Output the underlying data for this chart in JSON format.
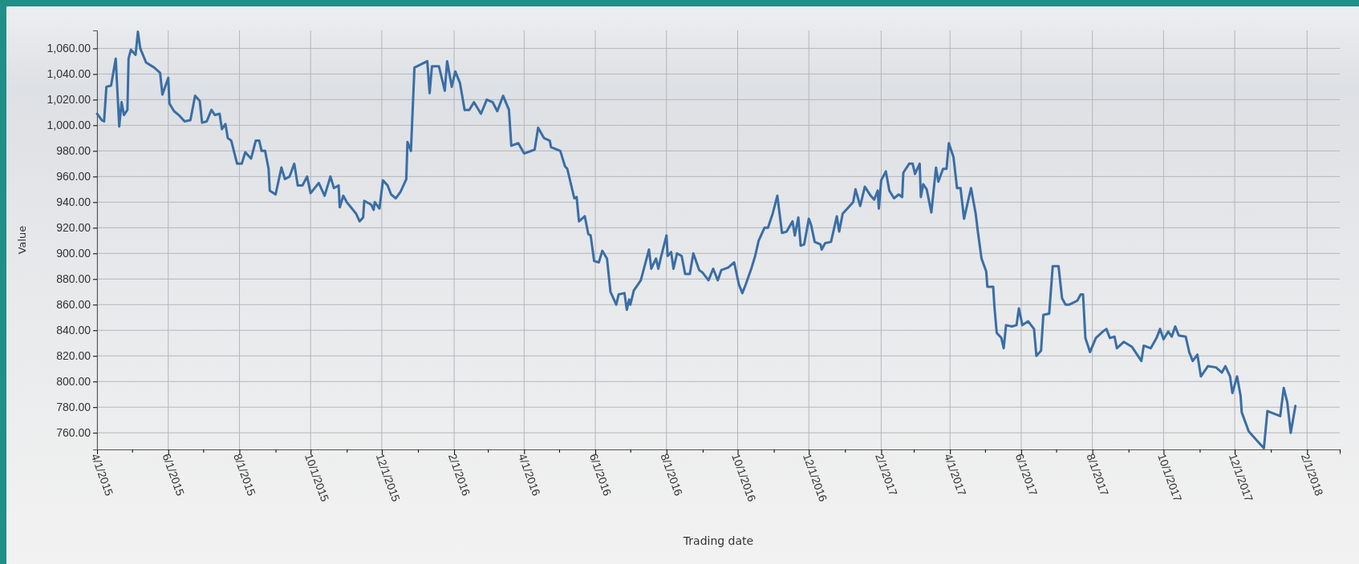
{
  "chart_data": {
    "type": "line",
    "xlabel": "Trading date",
    "ylabel": "Value",
    "grid": true,
    "line_style": "solid",
    "marker": "none",
    "xlim": [
      "2015-04-01",
      "2018-03-01"
    ],
    "xticks": [
      {
        "value": "2015-04-01",
        "label": "4/1/2015"
      },
      {
        "value": "2015-05-01",
        "label": null
      },
      {
        "value": "2015-06-01",
        "label": "6/1/2015"
      },
      {
        "value": "2015-07-01",
        "label": null
      },
      {
        "value": "2015-08-01",
        "label": "8/1/2015"
      },
      {
        "value": "2015-09-01",
        "label": null
      },
      {
        "value": "2015-10-01",
        "label": "10/1/2015"
      },
      {
        "value": "2015-11-01",
        "label": null
      },
      {
        "value": "2015-12-01",
        "label": "12/1/2015"
      },
      {
        "value": "2016-01-01",
        "label": null
      },
      {
        "value": "2016-02-01",
        "label": "2/1/2016"
      },
      {
        "value": "2016-03-01",
        "label": null
      },
      {
        "value": "2016-04-01",
        "label": "4/1/2016"
      },
      {
        "value": "2016-05-01",
        "label": null
      },
      {
        "value": "2016-06-01",
        "label": "6/1/2016"
      },
      {
        "value": "2016-07-01",
        "label": null
      },
      {
        "value": "2016-08-01",
        "label": "8/1/2016"
      },
      {
        "value": "2016-09-01",
        "label": null
      },
      {
        "value": "2016-10-01",
        "label": "10/1/2016"
      },
      {
        "value": "2016-11-01",
        "label": null
      },
      {
        "value": "2016-12-01",
        "label": "12/1/2016"
      },
      {
        "value": "2017-01-01",
        "label": null
      },
      {
        "value": "2017-02-01",
        "label": "2/1/2017"
      },
      {
        "value": "2017-03-01",
        "label": null
      },
      {
        "value": "2017-04-01",
        "label": "4/1/2017"
      },
      {
        "value": "2017-05-01",
        "label": null
      },
      {
        "value": "2017-06-01",
        "label": "6/1/2017"
      },
      {
        "value": "2017-07-01",
        "label": null
      },
      {
        "value": "2017-08-01",
        "label": "8/1/2017"
      },
      {
        "value": "2017-09-01",
        "label": null
      },
      {
        "value": "2017-10-01",
        "label": "10/1/2017"
      },
      {
        "value": "2017-11-01",
        "label": null
      },
      {
        "value": "2017-12-01",
        "label": "12/1/2017"
      },
      {
        "value": "2018-01-01",
        "label": null
      },
      {
        "value": "2018-02-01",
        "label": "2/1/2018"
      },
      {
        "value": "2018-03-01",
        "label": null
      }
    ],
    "ylim": [
      747,
      1074
    ],
    "yticks": [
      {
        "value": 760,
        "label": "760.00"
      },
      {
        "value": 780,
        "label": "780.00"
      },
      {
        "value": 800,
        "label": "800.00"
      },
      {
        "value": 820,
        "label": "820.00"
      },
      {
        "value": 840,
        "label": "840.00"
      },
      {
        "value": 860,
        "label": "860.00"
      },
      {
        "value": 880,
        "label": "880.00"
      },
      {
        "value": 900,
        "label": "900.00"
      },
      {
        "value": 920,
        "label": "920.00"
      },
      {
        "value": 940,
        "label": "940.00"
      },
      {
        "value": 960,
        "label": "960.00"
      },
      {
        "value": 980,
        "label": "980.00"
      },
      {
        "value": 1000,
        "label": "1,000.00"
      },
      {
        "value": 1020,
        "label": "1,020.00"
      },
      {
        "value": 1040,
        "label": "1,040.00"
      },
      {
        "value": 1060,
        "label": "1,060.00"
      }
    ],
    "series": [
      {
        "color": "#3a6ea5",
        "x": [
          "2015-04-01",
          "2015-04-05",
          "2015-04-07",
          "2015-04-09",
          "2015-04-13",
          "2015-04-17",
          "2015-04-20",
          "2015-04-22",
          "2015-04-24",
          "2015-04-27",
          "2015-04-28",
          "2015-04-30",
          "2015-05-04",
          "2015-05-06",
          "2015-05-08",
          "2015-05-13",
          "2015-05-20",
          "2015-05-25",
          "2015-05-27",
          "2015-06-01",
          "2015-06-02",
          "2015-06-06",
          "2015-06-10",
          "2015-06-15",
          "2015-06-20",
          "2015-06-24",
          "2015-06-28",
          "2015-06-30",
          "2015-07-04",
          "2015-07-08",
          "2015-07-11",
          "2015-07-15",
          "2015-07-17",
          "2015-07-20",
          "2015-07-22",
          "2015-07-25",
          "2015-07-30",
          "2015-08-03",
          "2015-08-06",
          "2015-08-11",
          "2015-08-15",
          "2015-08-18",
          "2015-08-20",
          "2015-08-23",
          "2015-08-26",
          "2015-08-27",
          "2015-09-01",
          "2015-09-06",
          "2015-09-09",
          "2015-09-13",
          "2015-09-17",
          "2015-09-20",
          "2015-09-24",
          "2015-09-28",
          "2015-10-01",
          "2015-10-08",
          "2015-10-13",
          "2015-10-18",
          "2015-10-21",
          "2015-10-25",
          "2015-10-26",
          "2015-10-29",
          "2015-11-01",
          "2015-11-09",
          "2015-11-12",
          "2015-11-15",
          "2015-11-16",
          "2015-11-22",
          "2015-11-24",
          "2015-11-25",
          "2015-11-29",
          "2015-12-02",
          "2015-12-06",
          "2015-12-09",
          "2015-12-13",
          "2015-12-17",
          "2015-12-22",
          "2015-12-23",
          "2015-12-26",
          "2015-12-29",
          "2016-01-09",
          "2016-01-11",
          "2016-01-13",
          "2016-01-19",
          "2016-01-24",
          "2016-01-26",
          "2016-01-30",
          "2016-02-02",
          "2016-02-06",
          "2016-02-10",
          "2016-02-14",
          "2016-02-18",
          "2016-02-24",
          "2016-02-29",
          "2016-03-05",
          "2016-03-09",
          "2016-03-14",
          "2016-03-19",
          "2016-03-21",
          "2016-03-27",
          "2016-04-01",
          "2016-04-10",
          "2016-04-13",
          "2016-04-18",
          "2016-04-23",
          "2016-04-24",
          "2016-05-02",
          "2016-05-06",
          "2016-05-08",
          "2016-05-14",
          "2016-05-16",
          "2016-05-18",
          "2016-05-23",
          "2016-05-26",
          "2016-05-28",
          "2016-05-31",
          "2016-06-04",
          "2016-06-07",
          "2016-06-11",
          "2016-06-14",
          "2016-06-19",
          "2016-06-21",
          "2016-06-26",
          "2016-06-28",
          "2016-06-30",
          "2016-07-01",
          "2016-07-04",
          "2016-07-10",
          "2016-07-17",
          "2016-07-19",
          "2016-07-23",
          "2016-07-25",
          "2016-07-27",
          "2016-08-01",
          "2016-08-02",
          "2016-08-05",
          "2016-08-07",
          "2016-08-10",
          "2016-08-14",
          "2016-08-17",
          "2016-08-21",
          "2016-08-24",
          "2016-08-29",
          "2016-09-01",
          "2016-09-06",
          "2016-09-10",
          "2016-09-14",
          "2016-09-17",
          "2016-09-23",
          "2016-09-28",
          "2016-10-02",
          "2016-10-05",
          "2016-10-08",
          "2016-10-13",
          "2016-10-16",
          "2016-10-19",
          "2016-10-24",
          "2016-10-27",
          "2016-10-31",
          "2016-11-04",
          "2016-11-08",
          "2016-11-12",
          "2016-11-17",
          "2016-11-19",
          "2016-11-22",
          "2016-11-24",
          "2016-11-27",
          "2016-12-01",
          "2016-12-03",
          "2016-12-06",
          "2016-12-11",
          "2016-12-12",
          "2016-12-15",
          "2016-12-20",
          "2016-12-25",
          "2016-12-27",
          "2016-12-30",
          "2017-01-08",
          "2017-01-10",
          "2017-01-14",
          "2017-01-18",
          "2017-01-23",
          "2017-01-26",
          "2017-01-29",
          "2017-01-30",
          "2017-02-01",
          "2017-02-05",
          "2017-02-08",
          "2017-02-12",
          "2017-02-16",
          "2017-02-19",
          "2017-02-20",
          "2017-02-25",
          "2017-02-28",
          "2017-03-02",
          "2017-03-06",
          "2017-03-07",
          "2017-03-09",
          "2017-03-12",
          "2017-03-16",
          "2017-03-20",
          "2017-03-22",
          "2017-03-26",
          "2017-03-29",
          "2017-03-31",
          "2017-04-04",
          "2017-04-07",
          "2017-04-10",
          "2017-04-13",
          "2017-04-19",
          "2017-04-23",
          "2017-04-25",
          "2017-04-28",
          "2017-05-02",
          "2017-05-03",
          "2017-05-08",
          "2017-05-09",
          "2017-05-11",
          "2017-05-15",
          "2017-05-17",
          "2017-05-19",
          "2017-05-24",
          "2017-05-28",
          "2017-05-30",
          "2017-06-02",
          "2017-06-07",
          "2017-06-12",
          "2017-06-14",
          "2017-06-18",
          "2017-06-20",
          "2017-06-25",
          "2017-06-28",
          "2017-07-03",
          "2017-07-06",
          "2017-07-09",
          "2017-07-12",
          "2017-07-19",
          "2017-07-22",
          "2017-07-24",
          "2017-07-26",
          "2017-07-30",
          "2017-08-04",
          "2017-08-10",
          "2017-08-13",
          "2017-08-16",
          "2017-08-20",
          "2017-08-22",
          "2017-08-28",
          "2017-09-04",
          "2017-09-12",
          "2017-09-14",
          "2017-09-20",
          "2017-09-25",
          "2017-09-28",
          "2017-10-01",
          "2017-10-05",
          "2017-10-08",
          "2017-10-11",
          "2017-10-14",
          "2017-10-20",
          "2017-10-23",
          "2017-10-26",
          "2017-10-30",
          "2017-11-02",
          "2017-11-08",
          "2017-11-15",
          "2017-11-20",
          "2017-11-23",
          "2017-11-27",
          "2017-11-29",
          "2017-12-03",
          "2017-12-06",
          "2017-12-07",
          "2017-12-13",
          "2017-12-19",
          "2017-12-26",
          "2017-12-29",
          "2018-01-09",
          "2018-01-12",
          "2018-01-15",
          "2018-01-18",
          "2018-01-22"
        ],
        "values": [
          1009,
          1004,
          1003,
          1030,
          1031,
          1052,
          999,
          1018,
          1008,
          1012,
          1052,
          1059,
          1055,
          1073,
          1060,
          1049,
          1045,
          1041,
          1024,
          1037,
          1017,
          1011,
          1008,
          1003,
          1004,
          1023,
          1019,
          1002,
          1003,
          1012,
          1008,
          1009,
          997,
          1001,
          990,
          988,
          970,
          970,
          979,
          974,
          988,
          988,
          980,
          980,
          966,
          949,
          946,
          967,
          958,
          960,
          970,
          953,
          953,
          960,
          947,
          955,
          945,
          960,
          951,
          953,
          936,
          945,
          940,
          931,
          925,
          928,
          941,
          938,
          934,
          940,
          935,
          957,
          953,
          946,
          943,
          948,
          958,
          987,
          980,
          1045,
          1050,
          1025,
          1046,
          1046,
          1027,
          1050,
          1030,
          1042,
          1033,
          1012,
          1012,
          1018,
          1009,
          1020,
          1018,
          1011,
          1023,
          1012,
          984,
          986,
          978,
          981,
          998,
          990,
          988,
          983,
          980,
          968,
          966,
          943,
          944,
          925,
          929,
          915,
          914,
          894,
          893,
          902,
          896,
          870,
          860,
          868,
          869,
          856,
          864,
          860,
          871,
          879,
          903,
          888,
          896,
          888,
          896,
          914,
          898,
          901,
          888,
          900,
          898,
          884,
          884,
          900,
          887,
          885,
          879,
          888,
          879,
          887,
          889,
          893,
          876,
          869,
          876,
          889,
          898,
          910,
          920,
          920,
          931,
          945,
          916,
          917,
          925,
          914,
          928,
          906,
          907,
          927,
          922,
          909,
          907,
          903,
          908,
          909,
          929,
          917,
          931,
          940,
          950,
          937,
          952,
          945,
          942,
          949,
          935,
          957,
          964,
          949,
          943,
          946,
          944,
          963,
          970,
          970,
          962,
          970,
          944,
          954,
          950,
          932,
          967,
          956,
          966,
          966,
          986,
          975,
          951,
          951,
          927,
          951,
          931,
          916,
          896,
          886,
          874,
          874,
          859,
          838,
          834,
          826,
          844,
          843,
          844,
          857,
          844,
          847,
          841,
          820,
          824,
          852,
          853,
          890,
          890,
          865,
          860,
          860,
          863,
          868,
          868,
          834,
          823,
          834,
          839,
          841,
          834,
          835,
          826,
          831,
          827,
          816,
          828,
          826,
          834,
          841,
          833,
          839,
          835,
          843,
          836,
          835,
          823,
          816,
          821,
          804,
          812,
          811,
          807,
          812,
          804,
          791,
          804,
          789,
          776,
          761,
          755,
          748,
          777,
          773,
          795,
          784,
          760,
          781
        ]
      }
    ]
  }
}
